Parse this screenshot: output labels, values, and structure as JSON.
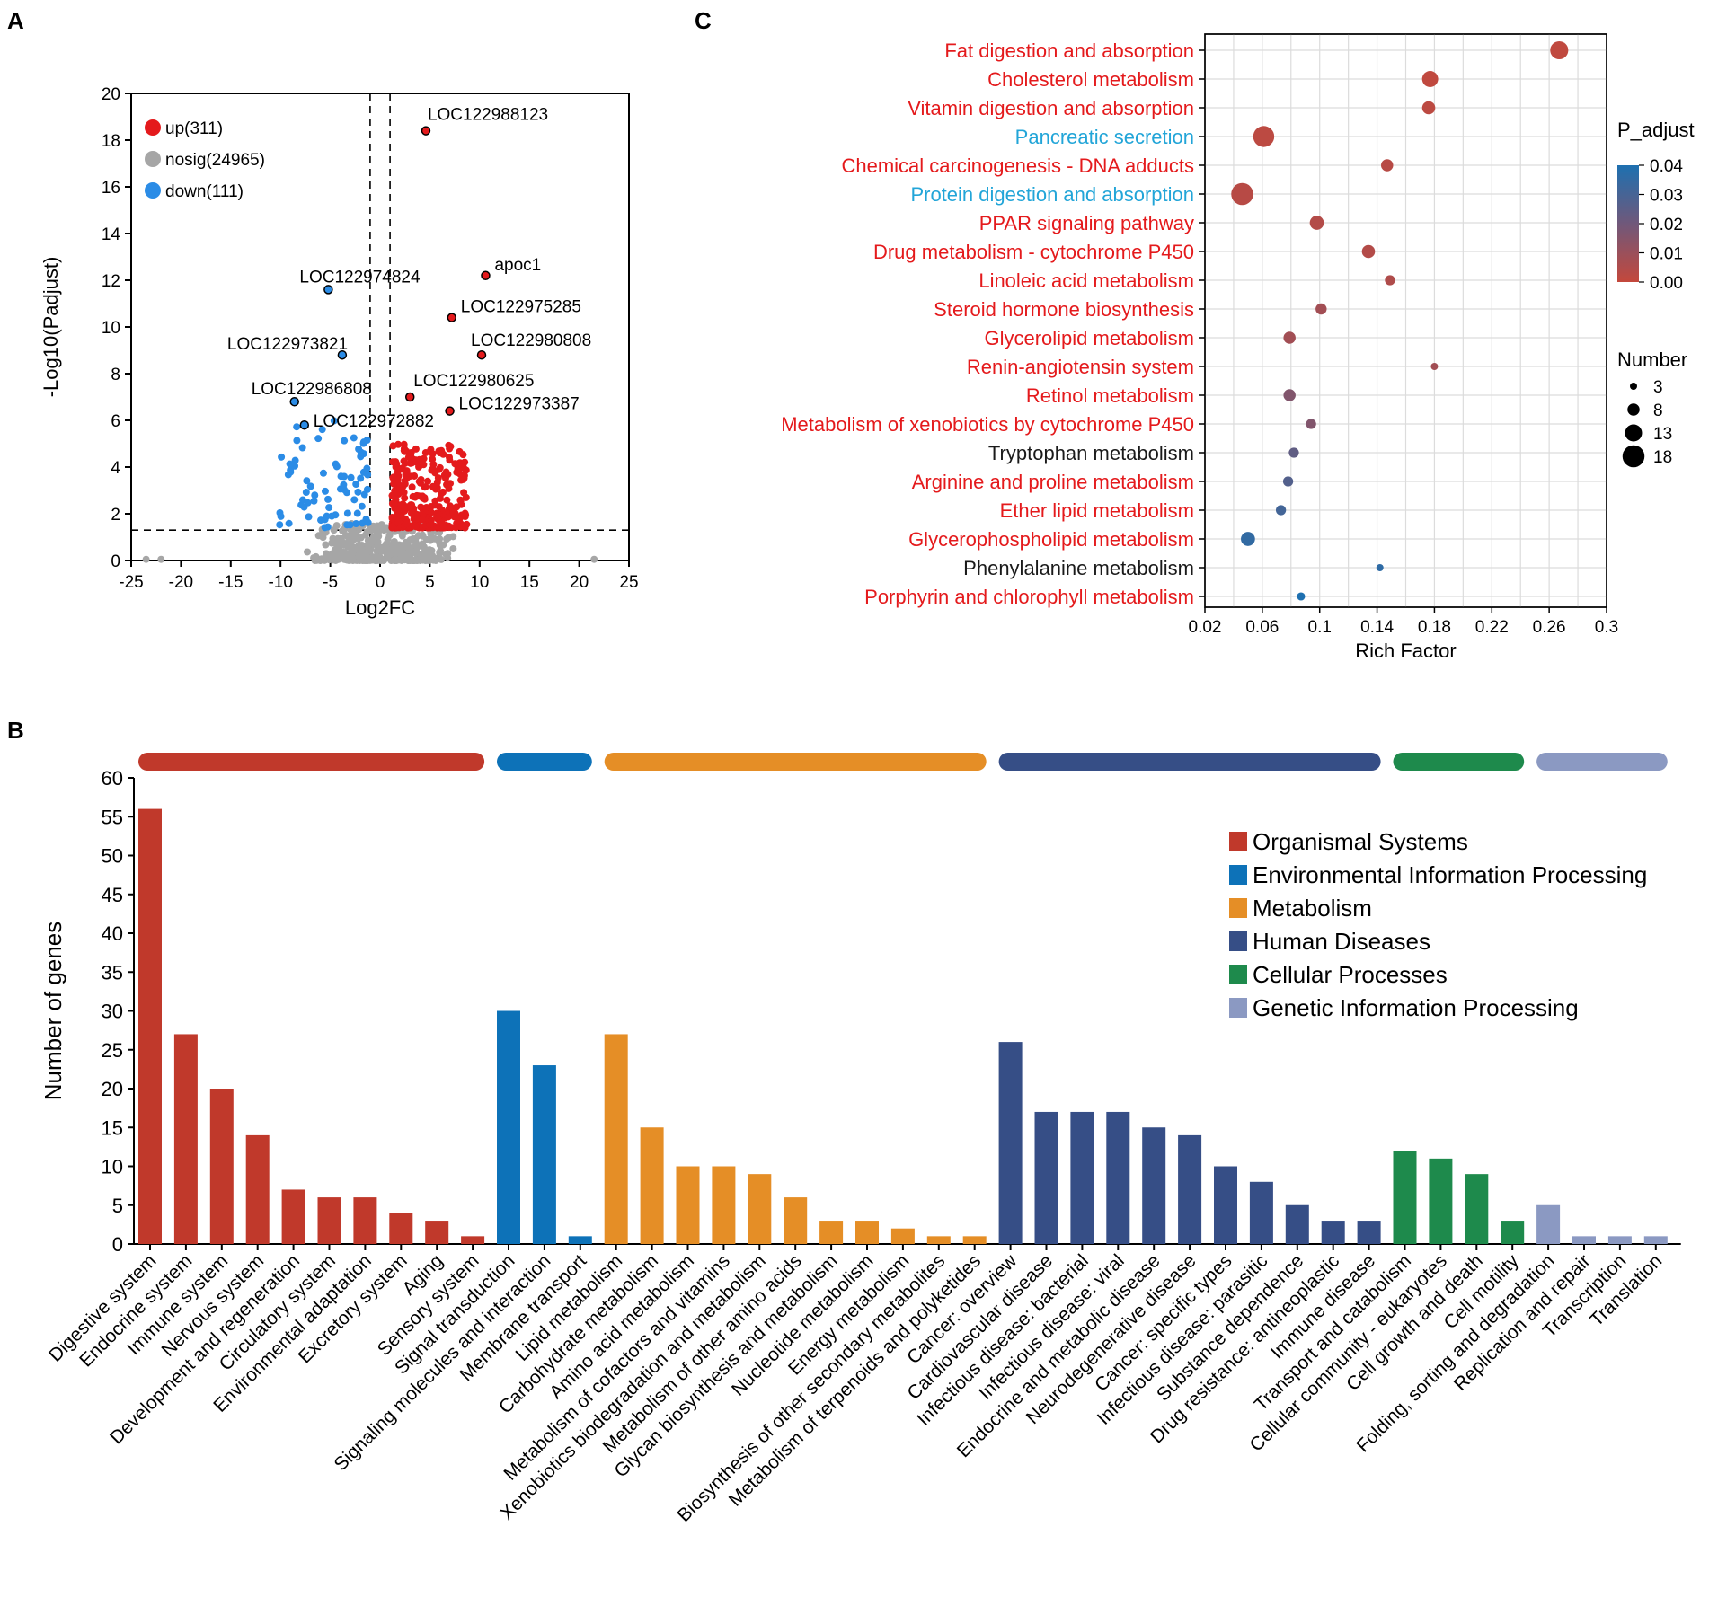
{
  "chart_data": [
    {
      "panel": "A",
      "type": "scatter",
      "xlabel": "Log2FC",
      "ylabel": "-Log10(Padjust)",
      "xlim": [
        -25,
        25
      ],
      "ylim": [
        0,
        20
      ],
      "x_ticks": [
        "-25",
        "-20",
        "-15",
        "-10",
        "-5",
        "0",
        "5",
        "10",
        "15",
        "20",
        "25"
      ],
      "y_ticks": [
        "0",
        "2",
        "4",
        "6",
        "8",
        "10",
        "12",
        "14",
        "16",
        "18",
        "20"
      ],
      "thresholds": {
        "log2fc": [
          -1,
          1
        ],
        "neg_log10_padj": 1.3
      },
      "legend": [
        {
          "label": "up(311)",
          "color": "#e41a1c"
        },
        {
          "label": "nosig(24965)",
          "color": "#a6a6a6"
        },
        {
          "label": "down(111)",
          "color": "#2b8ce6"
        }
      ],
      "labeled_genes": [
        {
          "name": "LOC122988123",
          "x": 4.6,
          "y": 18.4,
          "group": "up"
        },
        {
          "name": "apoc1",
          "x": 10.6,
          "y": 12.2,
          "group": "up"
        },
        {
          "name": "LOC122975285",
          "x": 7.2,
          "y": 10.4,
          "group": "up"
        },
        {
          "name": "LOC122980808",
          "x": 10.2,
          "y": 8.8,
          "group": "up"
        },
        {
          "name": "LOC122980625",
          "x": 3.0,
          "y": 7.0,
          "group": "up"
        },
        {
          "name": "LOC122973387",
          "x": 7.0,
          "y": 6.4,
          "group": "up"
        },
        {
          "name": "LOC122974824",
          "x": -5.2,
          "y": 11.6,
          "group": "down"
        },
        {
          "name": "LOC122973821",
          "x": -3.8,
          "y": 8.8,
          "group": "down"
        },
        {
          "name": "LOC122986808",
          "x": -8.6,
          "y": 6.8,
          "group": "down"
        },
        {
          "name": "LOC122972882",
          "x": -7.6,
          "y": 5.8,
          "group": "down"
        }
      ]
    },
    {
      "panel": "C",
      "type": "scatter",
      "xlabel": "Rich Factor",
      "xlim": [
        0.02,
        0.3
      ],
      "x_ticks": [
        "0.02",
        "0.06",
        "0.1",
        "0.14",
        "0.18",
        "0.22",
        "0.26",
        "0.3"
      ],
      "color_legend_title": "P_adjust",
      "color_ticks": [
        "0.04",
        "0.03",
        "0.02",
        "0.01",
        "0.00"
      ],
      "size_legend_title": "Number",
      "size_ticks": [
        "3",
        "8",
        "13",
        "18"
      ],
      "pathways": [
        {
          "name": "Fat digestion and absorption",
          "rich": 0.267,
          "number": 14,
          "p": 0.001,
          "label_color": "#e41a1c"
        },
        {
          "name": "Cholesterol metabolism",
          "rich": 0.177,
          "number": 12,
          "p": 0.001,
          "label_color": "#e41a1c"
        },
        {
          "name": "Vitamin digestion and absorption",
          "rich": 0.176,
          "number": 9,
          "p": 0.002,
          "label_color": "#e41a1c"
        },
        {
          "name": "Pancreatic secretion",
          "rich": 0.061,
          "number": 17,
          "p": 0.002,
          "label_color": "#22a5d8"
        },
        {
          "name": "Chemical carcinogenesis - DNA adducts",
          "rich": 0.147,
          "number": 8,
          "p": 0.003,
          "label_color": "#e41a1c"
        },
        {
          "name": "Protein digestion and absorption",
          "rich": 0.046,
          "number": 18,
          "p": 0.003,
          "label_color": "#22a5d8"
        },
        {
          "name": "PPAR signaling pathway",
          "rich": 0.098,
          "number": 10,
          "p": 0.004,
          "label_color": "#e41a1c"
        },
        {
          "name": "Drug metabolism - cytochrome P450",
          "rich": 0.134,
          "number": 9,
          "p": 0.004,
          "label_color": "#e41a1c"
        },
        {
          "name": "Linoleic acid metabolism",
          "rich": 0.149,
          "number": 6,
          "p": 0.005,
          "label_color": "#e41a1c"
        },
        {
          "name": "Steroid hormone biosynthesis",
          "rich": 0.101,
          "number": 7,
          "p": 0.008,
          "label_color": "#e41a1c"
        },
        {
          "name": "Glycerolipid metabolism",
          "rich": 0.079,
          "number": 8,
          "p": 0.008,
          "label_color": "#e41a1c"
        },
        {
          "name": "Renin-angiotensin system",
          "rich": 0.18,
          "number": 3,
          "p": 0.008,
          "label_color": "#e41a1c"
        },
        {
          "name": "Retinol metabolism",
          "rich": 0.079,
          "number": 8,
          "p": 0.016,
          "label_color": "#e41a1c"
        },
        {
          "name": "Metabolism of xenobiotics by cytochrome P450",
          "rich": 0.094,
          "number": 6,
          "p": 0.016,
          "label_color": "#e41a1c"
        },
        {
          "name": "Tryptophan metabolism",
          "rich": 0.082,
          "number": 6,
          "p": 0.024,
          "label_color": "#1a1a1a"
        },
        {
          "name": "Arginine and proline metabolism",
          "rich": 0.078,
          "number": 6,
          "p": 0.027,
          "label_color": "#e41a1c"
        },
        {
          "name": "Ether lipid metabolism",
          "rich": 0.073,
          "number": 6,
          "p": 0.031,
          "label_color": "#e41a1c"
        },
        {
          "name": "Glycerophospholipid metabolism",
          "rich": 0.05,
          "number": 10,
          "p": 0.035,
          "label_color": "#e41a1c"
        },
        {
          "name": "Phenylalanine metabolism",
          "rich": 0.142,
          "number": 3,
          "p": 0.036,
          "label_color": "#1a1a1a"
        },
        {
          "name": "Porphyrin and chlorophyll metabolism",
          "rich": 0.087,
          "number": 4,
          "p": 0.04,
          "label_color": "#e41a1c"
        }
      ]
    },
    {
      "panel": "B",
      "type": "bar",
      "ylabel": "Number of genes",
      "ylim": [
        0,
        60
      ],
      "y_ticks": [
        "0",
        "5",
        "10",
        "15",
        "20",
        "25",
        "30",
        "35",
        "40",
        "45",
        "50",
        "55",
        "60"
      ],
      "groups": [
        {
          "name": "Organismal Systems",
          "color": "#c0392b"
        },
        {
          "name": "Environmental Information Processing",
          "color": "#0d72b8"
        },
        {
          "name": "Metabolism",
          "color": "#e58e26"
        },
        {
          "name": "Human Diseases",
          "color": "#364e86"
        },
        {
          "name": "Cellular Processes",
          "color": "#1e8a4c"
        },
        {
          "name": "Genetic Information Processing",
          "color": "#8b99c2"
        }
      ],
      "bars": [
        {
          "category": "Digestive system",
          "value": 56,
          "group": 0
        },
        {
          "category": "Endocrine system",
          "value": 27,
          "group": 0
        },
        {
          "category": "Immune system",
          "value": 20,
          "group": 0
        },
        {
          "category": "Nervous system",
          "value": 14,
          "group": 0
        },
        {
          "category": "Development and regeneration",
          "value": 7,
          "group": 0
        },
        {
          "category": "Circulatory system",
          "value": 6,
          "group": 0
        },
        {
          "category": "Environmental adaptation",
          "value": 6,
          "group": 0
        },
        {
          "category": "Excretory system",
          "value": 4,
          "group": 0
        },
        {
          "category": "Aging",
          "value": 3,
          "group": 0
        },
        {
          "category": "Sensory system",
          "value": 1,
          "group": 0
        },
        {
          "category": "Signal transduction",
          "value": 30,
          "group": 1
        },
        {
          "category": "Signaling molecules and interaction",
          "value": 23,
          "group": 1
        },
        {
          "category": "Membrane transport",
          "value": 1,
          "group": 1
        },
        {
          "category": "Lipid metabolism",
          "value": 27,
          "group": 2
        },
        {
          "category": "Carbohydrate metabolism",
          "value": 15,
          "group": 2
        },
        {
          "category": "Amino acid metabolism",
          "value": 10,
          "group": 2
        },
        {
          "category": "Metabolism of cofactors and vitamins",
          "value": 10,
          "group": 2
        },
        {
          "category": "Xenobiotics biodegradation and metabolism",
          "value": 9,
          "group": 2
        },
        {
          "category": "Metabolism of other amino acids",
          "value": 6,
          "group": 2
        },
        {
          "category": "Glycan biosynthesis and metabolism",
          "value": 3,
          "group": 2
        },
        {
          "category": "Nucleotide metabolism",
          "value": 3,
          "group": 2
        },
        {
          "category": "Energy metabolism",
          "value": 2,
          "group": 2
        },
        {
          "category": "Biosynthesis of other secondary metabolites",
          "value": 1,
          "group": 2
        },
        {
          "category": "Metabolism of terpenoids and polyketides",
          "value": 1,
          "group": 2
        },
        {
          "category": "Cancer: overview",
          "value": 26,
          "group": 3
        },
        {
          "category": "Cardiovascular disease",
          "value": 17,
          "group": 3
        },
        {
          "category": "Infectious disease: bacterial",
          "value": 17,
          "group": 3
        },
        {
          "category": "Infectious disease: viral",
          "value": 17,
          "group": 3
        },
        {
          "category": "Endocrine and metabolic disease",
          "value": 15,
          "group": 3
        },
        {
          "category": "Neurodegenerative disease",
          "value": 14,
          "group": 3
        },
        {
          "category": "Cancer: specific types",
          "value": 10,
          "group": 3
        },
        {
          "category": "Infectious disease: parasitic",
          "value": 8,
          "group": 3
        },
        {
          "category": "Substance dependence",
          "value": 5,
          "group": 3
        },
        {
          "category": "Drug resistance: antineoplastic",
          "value": 3,
          "group": 3
        },
        {
          "category": "Immune disease",
          "value": 3,
          "group": 3
        },
        {
          "category": "Transport and catabolism",
          "value": 12,
          "group": 4
        },
        {
          "category": "Cellular community - eukaryotes",
          "value": 11,
          "group": 4
        },
        {
          "category": "Cell growth and death",
          "value": 9,
          "group": 4
        },
        {
          "category": "Cell motility",
          "value": 3,
          "group": 4
        },
        {
          "category": "Folding, sorting and degradation",
          "value": 5,
          "group": 5
        },
        {
          "category": "Replication and repair",
          "value": 1,
          "group": 5
        },
        {
          "category": "Transcription",
          "value": 1,
          "group": 5
        },
        {
          "category": "Translation",
          "value": 1,
          "group": 5
        }
      ]
    }
  ],
  "panel_labels": {
    "a": "A",
    "b": "B",
    "c": "C"
  }
}
